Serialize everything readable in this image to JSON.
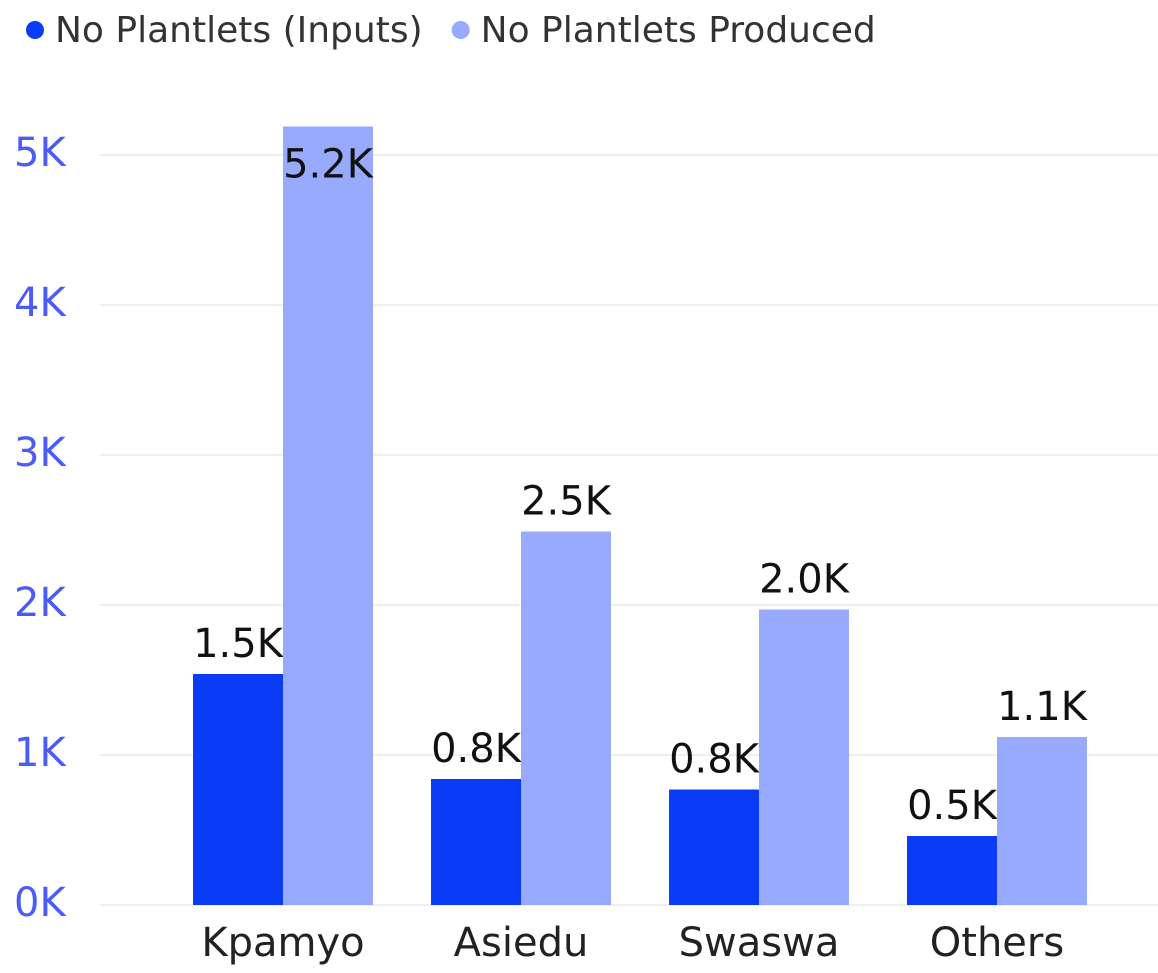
{
  "chart_data": {
    "type": "bar",
    "categories": [
      "Kpamyo",
      "Asiedu",
      "Swaswa",
      "Others"
    ],
    "series": [
      {
        "name": "No Plantlets (Inputs)",
        "color": "#0a3cf5",
        "values": [
          1540,
          840,
          770,
          460
        ],
        "value_labels": [
          "1.5K",
          "0.8K",
          "0.8K",
          "0.5K"
        ]
      },
      {
        "name": "No Plantlets Produced",
        "color": "#97aafd",
        "values": [
          5190,
          2490,
          1970,
          1120
        ],
        "value_labels": [
          "5.2K",
          "2.5K",
          "2.0K",
          "1.1K"
        ]
      }
    ],
    "ylim": [
      0,
      5000
    ],
    "yticks": [
      {
        "value": 0,
        "label": "0K"
      },
      {
        "value": 1000,
        "label": "1K"
      },
      {
        "value": 2000,
        "label": "2K"
      },
      {
        "value": 3000,
        "label": "3K"
      },
      {
        "value": 4000,
        "label": "4K"
      },
      {
        "value": 5000,
        "label": "5K"
      }
    ],
    "grid": true
  }
}
